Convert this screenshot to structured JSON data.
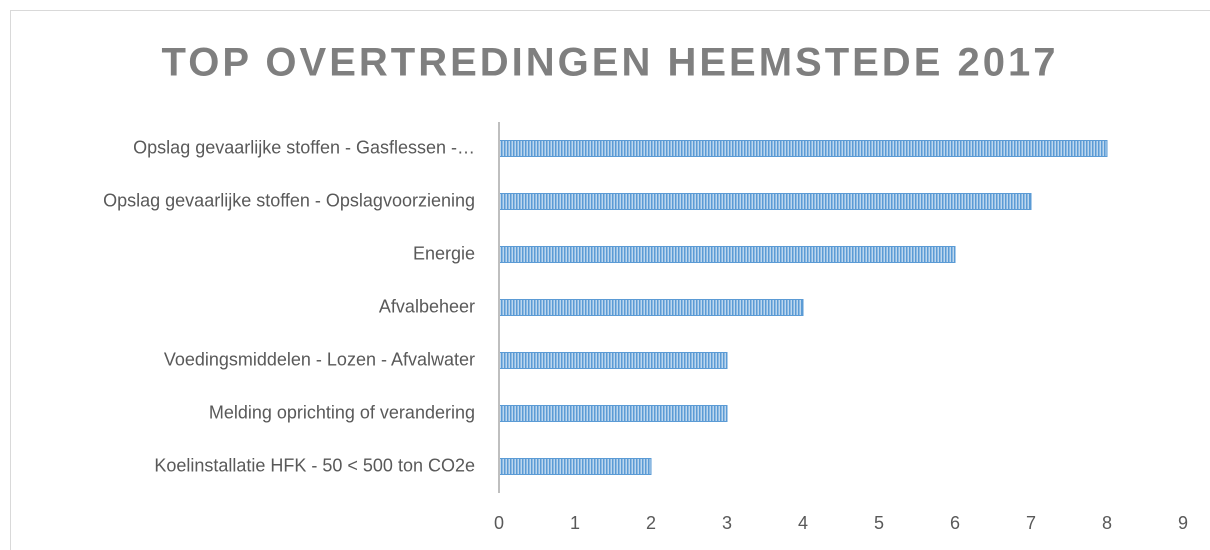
{
  "chart_data": {
    "type": "bar",
    "orientation": "horizontal",
    "title": "TOP OVERTREDINGEN HEEMSTEDE 2017",
    "categories": [
      "Opslag gevaarlijke stoffen - Gasflessen -…",
      "Opslag gevaarlijke stoffen - Opslagvoorziening",
      "Energie",
      "Afvalbeheer",
      "Voedingsmiddelen - Lozen - Afvalwater",
      "Melding oprichting of verandering",
      "Koelinstallatie HFK - 50 < 500 ton CO2e"
    ],
    "values": [
      8,
      7,
      6,
      4,
      3,
      3,
      2
    ],
    "color": "#5b9bd5",
    "xlim": [
      0,
      9
    ],
    "xticks": [
      0,
      1,
      2,
      3,
      4,
      5,
      6,
      7,
      8,
      9
    ],
    "grid": false
  }
}
